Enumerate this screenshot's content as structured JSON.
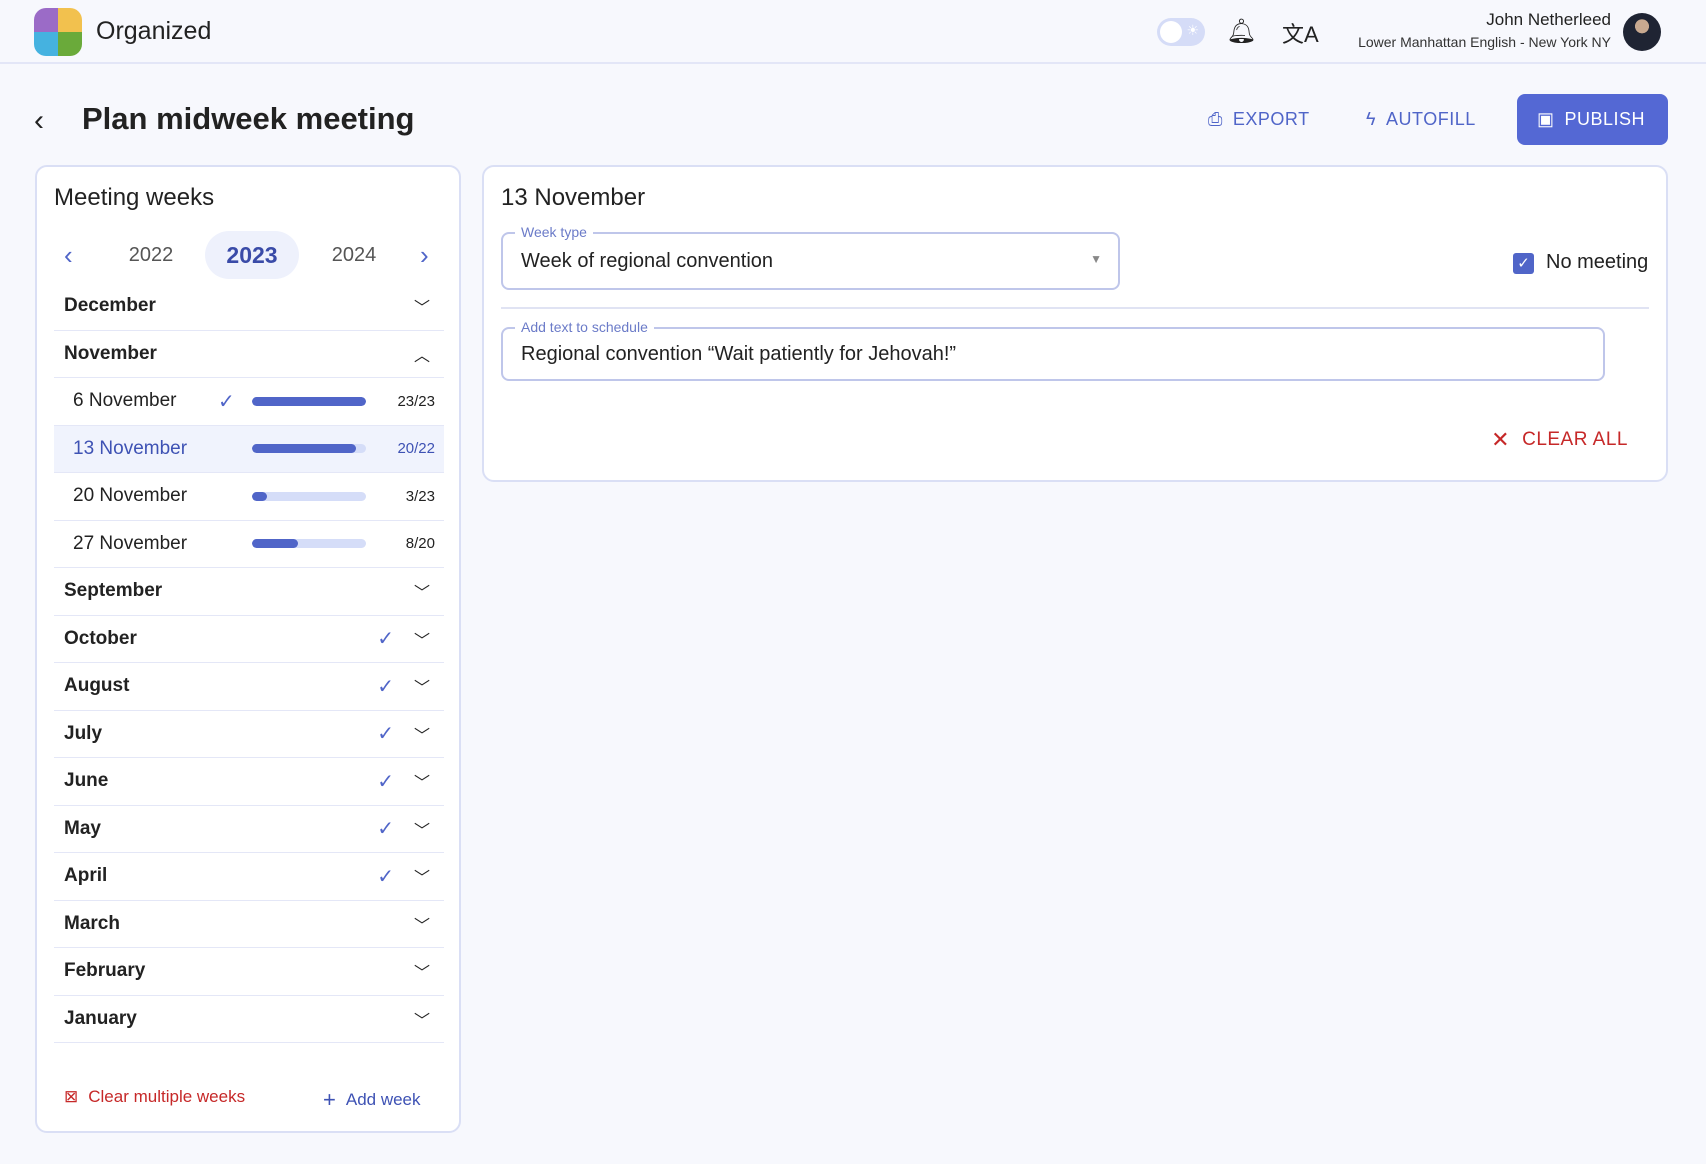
{
  "header": {
    "app_name": "Organized",
    "user_name": "John Netherleed",
    "congregation": "Lower Manhattan English - New York NY"
  },
  "page": {
    "title": "Plan midweek meeting",
    "export_label": "EXPORT",
    "autofill_label": "AUTOFILL",
    "publish_label": "PUBLISH"
  },
  "weeks_panel": {
    "title": "Meeting weeks",
    "years": [
      "2022",
      "2023",
      "2024"
    ],
    "selected_year": "2023",
    "months": [
      {
        "label": "December",
        "done": false,
        "expanded": false
      },
      {
        "label": "November",
        "done": false,
        "expanded": true,
        "weeks": [
          {
            "label": "6 November",
            "done": true,
            "count": "23/23",
            "progress": 1.0
          },
          {
            "label": "13 November",
            "done": false,
            "count": "20/22",
            "progress": 0.91,
            "selected": true
          },
          {
            "label": "20 November",
            "done": false,
            "count": "3/23",
            "progress": 0.13
          },
          {
            "label": "27 November",
            "done": false,
            "count": "8/20",
            "progress": 0.4
          }
        ]
      },
      {
        "label": "September",
        "done": false
      },
      {
        "label": "October",
        "done": true
      },
      {
        "label": "August",
        "done": true
      },
      {
        "label": "July",
        "done": true
      },
      {
        "label": "June",
        "done": true
      },
      {
        "label": "May",
        "done": true
      },
      {
        "label": "April",
        "done": true
      },
      {
        "label": "March",
        "done": false
      },
      {
        "label": "February",
        "done": false
      },
      {
        "label": "January",
        "done": false
      }
    ],
    "clear_multiple_label": "Clear multiple weeks",
    "add_week_label": "Add week"
  },
  "week_detail": {
    "title": "13 November",
    "week_type_label": "Week type",
    "week_type_value": "Week of regional convention",
    "no_meeting_label": "No meeting",
    "no_meeting_checked": true,
    "schedule_text_label": "Add text to schedule",
    "schedule_text_value": "Regional convention “Wait patiently for Jehovah!”",
    "clear_all_label": "CLEAR ALL"
  },
  "colors": {
    "accent": "#5065c8",
    "danger": "#c62828",
    "background": "#f7f8fd"
  }
}
